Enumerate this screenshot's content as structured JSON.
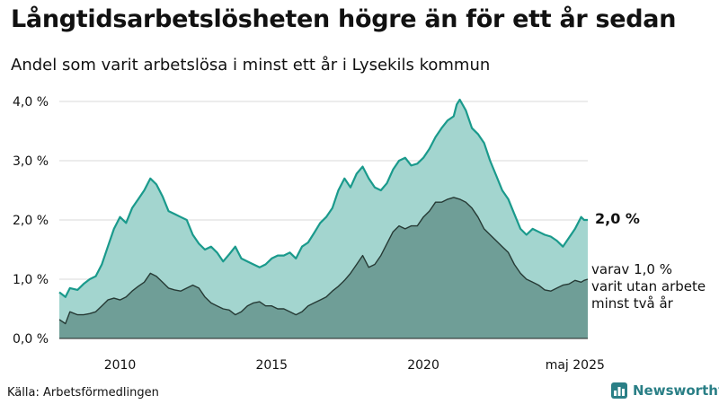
{
  "header": {
    "title": "Långtidsarbetslösheten högre än för ett år sedan",
    "subtitle": "Andel som varit arbetslösa i minst ett år i Lysekils kommun"
  },
  "footer": {
    "source": "Källa: Arbetsförmedlingen",
    "brand": "Newsworthy"
  },
  "annotations": {
    "latest_total": "2,0 %",
    "sub_line1": "varav 1,0 %",
    "sub_line2": "varit utan arbete",
    "sub_line3": "minst två år"
  },
  "colors": {
    "total_fill": "#a3d5cf",
    "total_line": "#1a9a8c",
    "long_fill": "#6f9e97",
    "long_line": "#263a35",
    "grid": "#d9d9d9",
    "brand": "#2a7f86"
  },
  "icons": {
    "brand_logo": "bar-chart-logo-icon"
  },
  "chart_data": {
    "type": "area",
    "ylim": [
      0,
      4
    ],
    "xlim": [
      2008.0,
      2025.42
    ],
    "y_ticks": [
      {
        "value": 0,
        "label": "0,0 %"
      },
      {
        "value": 1,
        "label": "1,0 %"
      },
      {
        "value": 2,
        "label": "2,0 %"
      },
      {
        "value": 3,
        "label": "3,0 %"
      },
      {
        "value": 4,
        "label": "4,0 %"
      }
    ],
    "x_ticks": [
      {
        "value": 2010,
        "label": "2010"
      },
      {
        "value": 2015,
        "label": "2015"
      },
      {
        "value": 2020,
        "label": "2020"
      },
      {
        "value": 2025,
        "label": "maj 2025"
      }
    ],
    "grid": true,
    "series": [
      {
        "points": [
          [
            2008.0,
            0.78
          ],
          [
            2008.2,
            0.7
          ],
          [
            2008.35,
            0.85
          ],
          [
            2008.6,
            0.82
          ],
          [
            2008.8,
            0.92
          ],
          [
            2009.0,
            1.0
          ],
          [
            2009.2,
            1.05
          ],
          [
            2009.4,
            1.25
          ],
          [
            2009.6,
            1.55
          ],
          [
            2009.8,
            1.85
          ],
          [
            2010.0,
            2.05
          ],
          [
            2010.2,
            1.95
          ],
          [
            2010.4,
            2.2
          ],
          [
            2010.6,
            2.35
          ],
          [
            2010.8,
            2.5
          ],
          [
            2011.0,
            2.7
          ],
          [
            2011.2,
            2.6
          ],
          [
            2011.4,
            2.4
          ],
          [
            2011.6,
            2.15
          ],
          [
            2011.8,
            2.1
          ],
          [
            2012.0,
            2.05
          ],
          [
            2012.2,
            2.0
          ],
          [
            2012.4,
            1.75
          ],
          [
            2012.6,
            1.6
          ],
          [
            2012.8,
            1.5
          ],
          [
            2013.0,
            1.55
          ],
          [
            2013.2,
            1.45
          ],
          [
            2013.4,
            1.3
          ],
          [
            2013.6,
            1.42
          ],
          [
            2013.8,
            1.55
          ],
          [
            2014.0,
            1.35
          ],
          [
            2014.2,
            1.3
          ],
          [
            2014.4,
            1.25
          ],
          [
            2014.6,
            1.2
          ],
          [
            2014.8,
            1.25
          ],
          [
            2015.0,
            1.35
          ],
          [
            2015.2,
            1.4
          ],
          [
            2015.4,
            1.4
          ],
          [
            2015.6,
            1.45
          ],
          [
            2015.8,
            1.35
          ],
          [
            2016.0,
            1.55
          ],
          [
            2016.2,
            1.62
          ],
          [
            2016.4,
            1.78
          ],
          [
            2016.6,
            1.95
          ],
          [
            2016.8,
            2.05
          ],
          [
            2017.0,
            2.2
          ],
          [
            2017.2,
            2.5
          ],
          [
            2017.4,
            2.7
          ],
          [
            2017.6,
            2.55
          ],
          [
            2017.8,
            2.78
          ],
          [
            2018.0,
            2.9
          ],
          [
            2018.2,
            2.7
          ],
          [
            2018.4,
            2.55
          ],
          [
            2018.6,
            2.5
          ],
          [
            2018.8,
            2.62
          ],
          [
            2019.0,
            2.85
          ],
          [
            2019.2,
            3.0
          ],
          [
            2019.4,
            3.05
          ],
          [
            2019.6,
            2.92
          ],
          [
            2019.8,
            2.95
          ],
          [
            2020.0,
            3.05
          ],
          [
            2020.2,
            3.2
          ],
          [
            2020.4,
            3.4
          ],
          [
            2020.6,
            3.55
          ],
          [
            2020.8,
            3.68
          ],
          [
            2021.0,
            3.75
          ],
          [
            2021.1,
            3.95
          ],
          [
            2021.2,
            4.03
          ],
          [
            2021.4,
            3.85
          ],
          [
            2021.6,
            3.55
          ],
          [
            2021.8,
            3.45
          ],
          [
            2022.0,
            3.3
          ],
          [
            2022.2,
            3.0
          ],
          [
            2022.4,
            2.75
          ],
          [
            2022.6,
            2.5
          ],
          [
            2022.8,
            2.35
          ],
          [
            2023.0,
            2.1
          ],
          [
            2023.2,
            1.85
          ],
          [
            2023.4,
            1.75
          ],
          [
            2023.6,
            1.85
          ],
          [
            2023.8,
            1.8
          ],
          [
            2024.0,
            1.75
          ],
          [
            2024.2,
            1.72
          ],
          [
            2024.4,
            1.65
          ],
          [
            2024.6,
            1.55
          ],
          [
            2024.8,
            1.7
          ],
          [
            2025.0,
            1.85
          ],
          [
            2025.2,
            2.05
          ],
          [
            2025.3,
            2.0
          ],
          [
            2025.42,
            2.0
          ]
        ]
      },
      {
        "points": [
          [
            2008.0,
            0.32
          ],
          [
            2008.2,
            0.25
          ],
          [
            2008.35,
            0.45
          ],
          [
            2008.6,
            0.4
          ],
          [
            2008.8,
            0.4
          ],
          [
            2009.0,
            0.42
          ],
          [
            2009.2,
            0.45
          ],
          [
            2009.4,
            0.55
          ],
          [
            2009.6,
            0.65
          ],
          [
            2009.8,
            0.68
          ],
          [
            2010.0,
            0.65
          ],
          [
            2010.2,
            0.7
          ],
          [
            2010.4,
            0.8
          ],
          [
            2010.6,
            0.88
          ],
          [
            2010.8,
            0.95
          ],
          [
            2011.0,
            1.1
          ],
          [
            2011.2,
            1.05
          ],
          [
            2011.4,
            0.95
          ],
          [
            2011.6,
            0.85
          ],
          [
            2011.8,
            0.82
          ],
          [
            2012.0,
            0.8
          ],
          [
            2012.2,
            0.85
          ],
          [
            2012.4,
            0.9
          ],
          [
            2012.6,
            0.85
          ],
          [
            2012.8,
            0.7
          ],
          [
            2013.0,
            0.6
          ],
          [
            2013.2,
            0.55
          ],
          [
            2013.4,
            0.5
          ],
          [
            2013.6,
            0.48
          ],
          [
            2013.8,
            0.4
          ],
          [
            2014.0,
            0.45
          ],
          [
            2014.2,
            0.55
          ],
          [
            2014.4,
            0.6
          ],
          [
            2014.6,
            0.62
          ],
          [
            2014.8,
            0.55
          ],
          [
            2015.0,
            0.55
          ],
          [
            2015.2,
            0.5
          ],
          [
            2015.4,
            0.5
          ],
          [
            2015.6,
            0.45
          ],
          [
            2015.8,
            0.4
          ],
          [
            2016.0,
            0.45
          ],
          [
            2016.2,
            0.55
          ],
          [
            2016.4,
            0.6
          ],
          [
            2016.6,
            0.65
          ],
          [
            2016.8,
            0.7
          ],
          [
            2017.0,
            0.8
          ],
          [
            2017.2,
            0.88
          ],
          [
            2017.4,
            0.98
          ],
          [
            2017.6,
            1.1
          ],
          [
            2017.8,
            1.25
          ],
          [
            2018.0,
            1.4
          ],
          [
            2018.2,
            1.2
          ],
          [
            2018.4,
            1.25
          ],
          [
            2018.6,
            1.4
          ],
          [
            2018.8,
            1.6
          ],
          [
            2019.0,
            1.8
          ],
          [
            2019.2,
            1.9
          ],
          [
            2019.4,
            1.85
          ],
          [
            2019.6,
            1.9
          ],
          [
            2019.8,
            1.9
          ],
          [
            2020.0,
            2.05
          ],
          [
            2020.2,
            2.15
          ],
          [
            2020.4,
            2.3
          ],
          [
            2020.6,
            2.3
          ],
          [
            2020.8,
            2.35
          ],
          [
            2021.0,
            2.38
          ],
          [
            2021.2,
            2.35
          ],
          [
            2021.4,
            2.3
          ],
          [
            2021.6,
            2.2
          ],
          [
            2021.8,
            2.05
          ],
          [
            2022.0,
            1.85
          ],
          [
            2022.2,
            1.75
          ],
          [
            2022.4,
            1.65
          ],
          [
            2022.6,
            1.55
          ],
          [
            2022.8,
            1.45
          ],
          [
            2023.0,
            1.25
          ],
          [
            2023.2,
            1.1
          ],
          [
            2023.4,
            1.0
          ],
          [
            2023.6,
            0.95
          ],
          [
            2023.8,
            0.9
          ],
          [
            2024.0,
            0.82
          ],
          [
            2024.2,
            0.8
          ],
          [
            2024.4,
            0.85
          ],
          [
            2024.6,
            0.9
          ],
          [
            2024.8,
            0.92
          ],
          [
            2025.0,
            0.98
          ],
          [
            2025.2,
            0.95
          ],
          [
            2025.3,
            0.98
          ],
          [
            2025.42,
            1.0
          ]
        ]
      }
    ]
  }
}
